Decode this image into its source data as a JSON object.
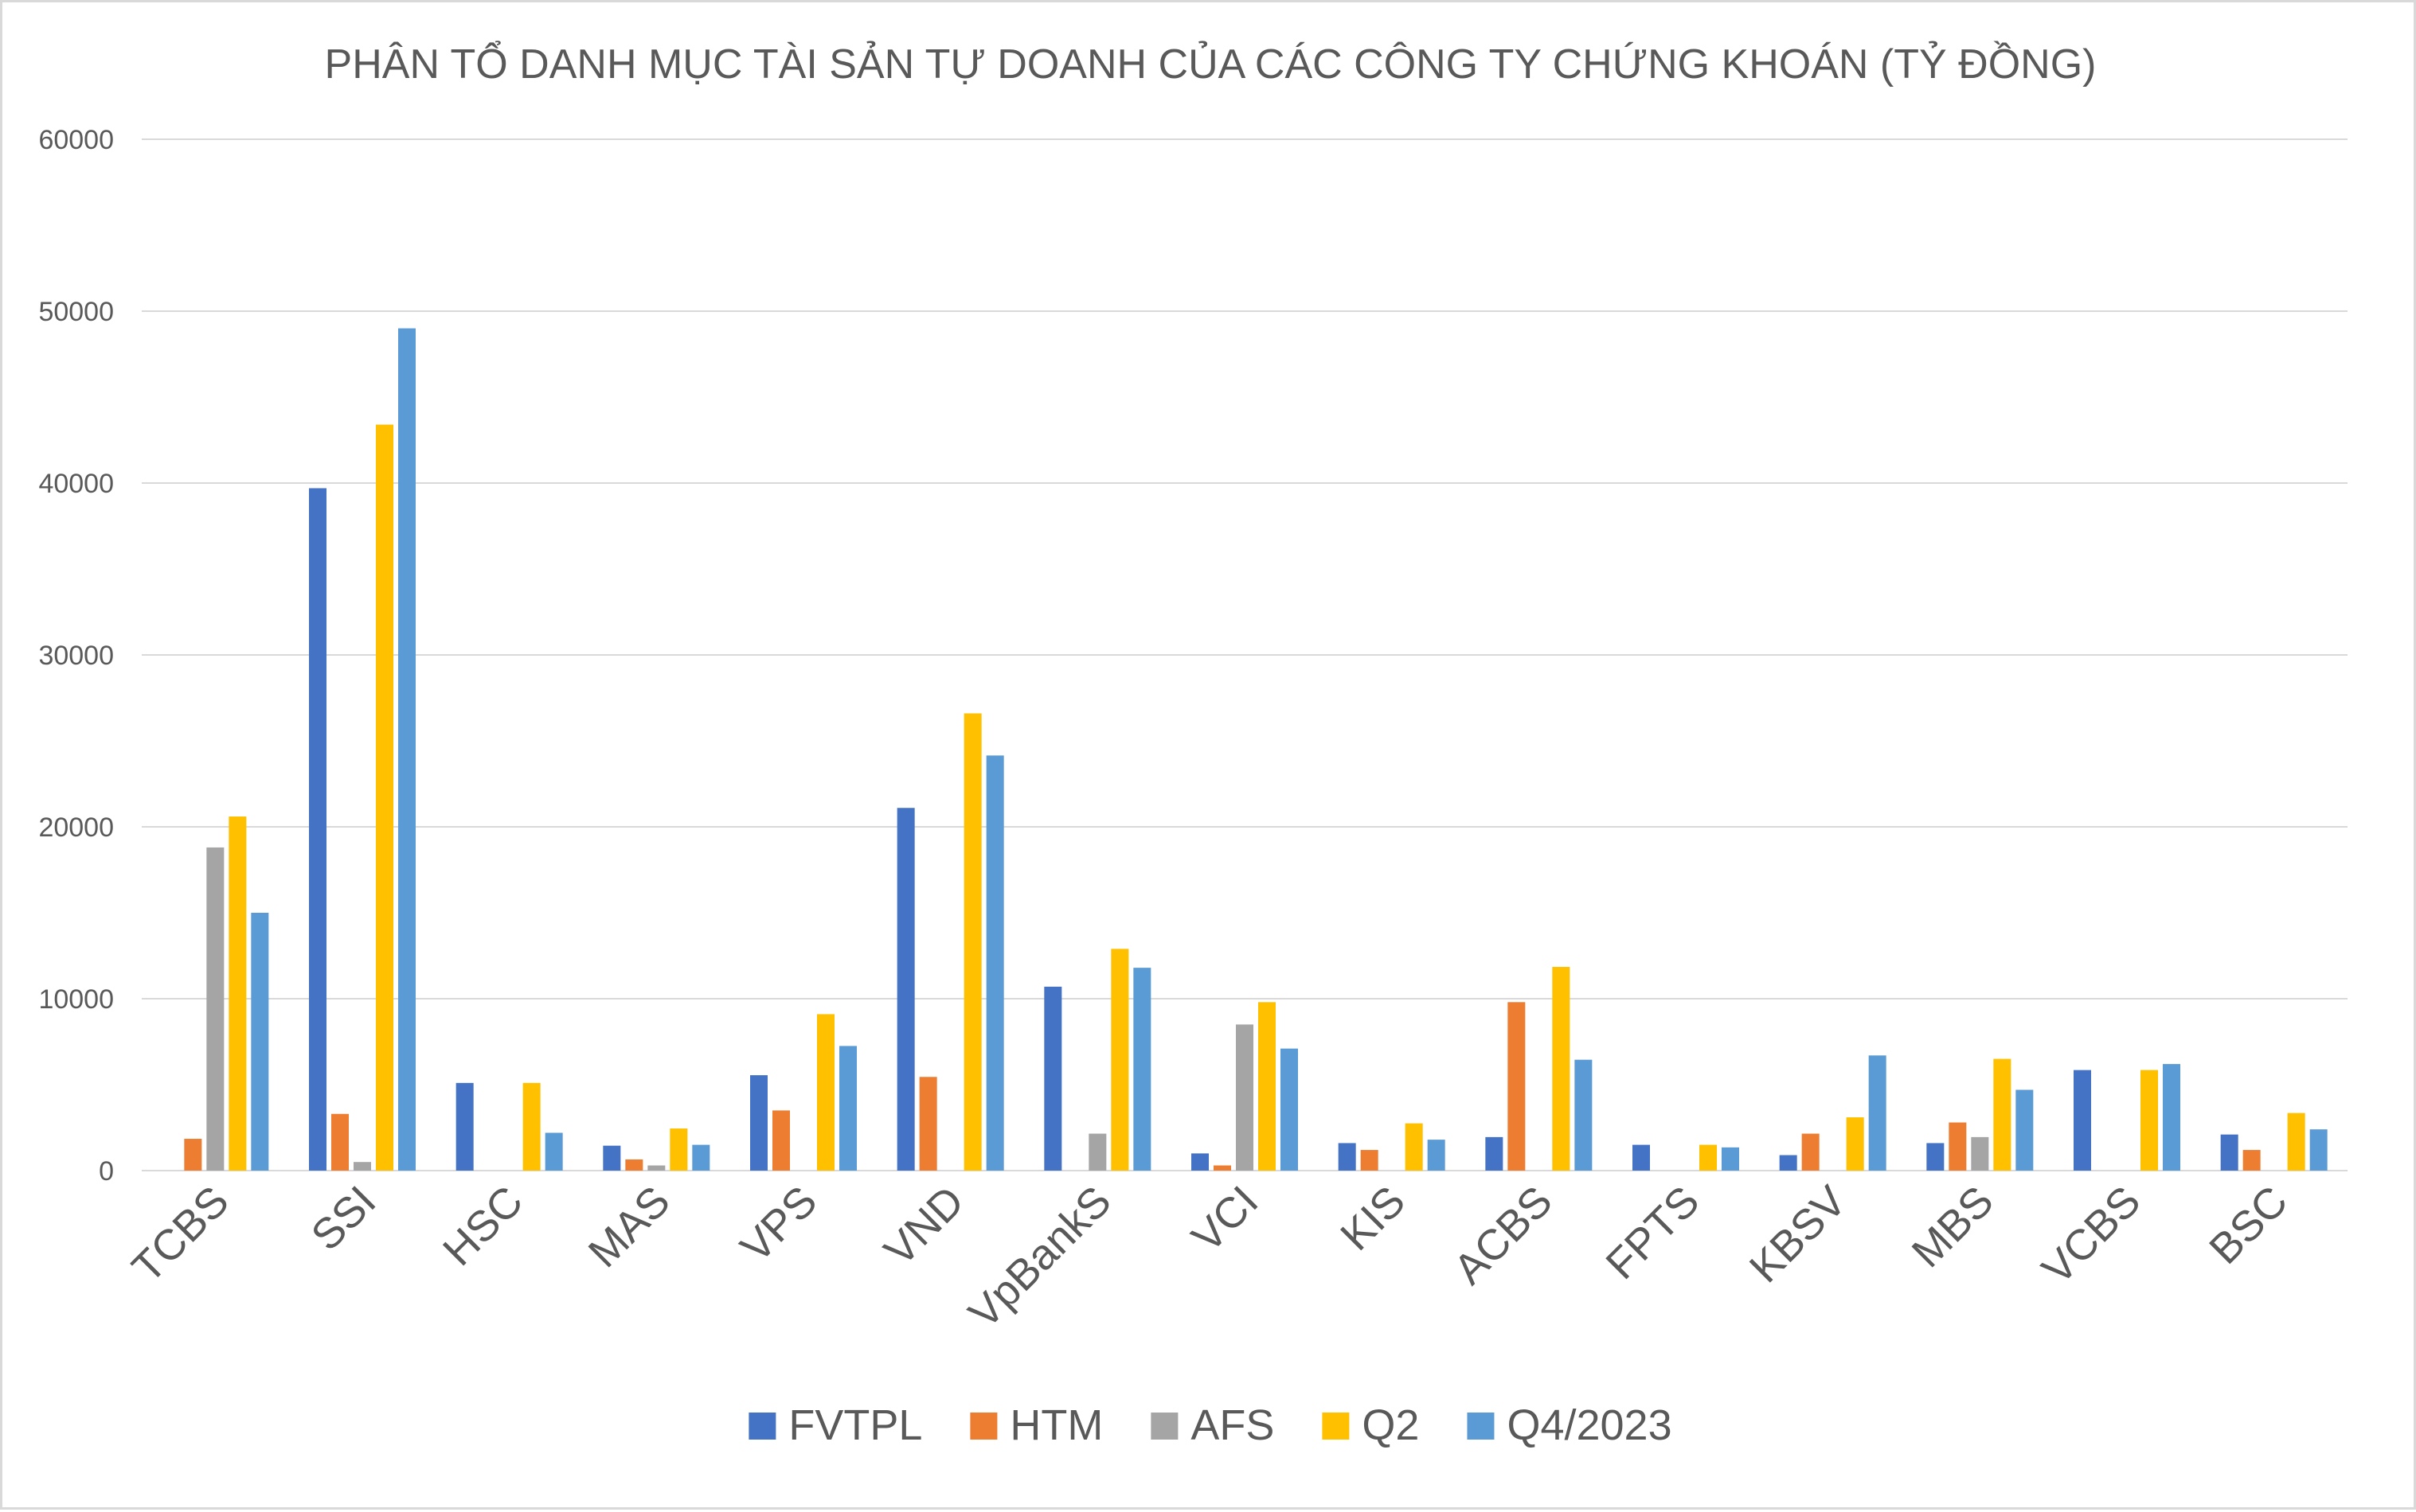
{
  "chart_data": {
    "type": "bar",
    "title": "PHÂN TỔ DANH MỤC TÀI SẢN TỰ DOANH CỦA CÁC CÔNG TY CHỨNG KHOÁN (TỶ ĐỒNG)",
    "xlabel": "",
    "ylabel": "",
    "ylim": [
      0,
      60000
    ],
    "yticks": [
      0,
      10000,
      20000,
      30000,
      40000,
      50000,
      60000
    ],
    "grid": true,
    "legend_position": "bottom",
    "categories": [
      "TCBS",
      "SSI",
      "HSC",
      "MAS",
      "VPS",
      "VND",
      "VpBankS",
      "VCI",
      "KIS",
      "ACBS",
      "FPTS",
      "KBSV",
      "MBS",
      "VCBS",
      "BSC"
    ],
    "series": [
      {
        "name": "FVTPL",
        "color": "#4472C4",
        "values": [
          0,
          39700,
          5100,
          1450,
          5550,
          21100,
          10700,
          1000,
          1600,
          1950,
          1500,
          900,
          1600,
          5850,
          2100
        ]
      },
      {
        "name": "HTM",
        "color": "#ED7D31",
        "values": [
          1850,
          3300,
          0,
          650,
          3500,
          5450,
          0,
          300,
          1200,
          9800,
          0,
          2150,
          2800,
          0,
          1200
        ]
      },
      {
        "name": "AFS",
        "color": "#A5A5A5",
        "values": [
          18800,
          500,
          0,
          300,
          0,
          0,
          2150,
          8500,
          0,
          0,
          0,
          0,
          1950,
          0,
          0
        ]
      },
      {
        "name": "Q2",
        "color": "#FFC000",
        "values": [
          20600,
          43400,
          5100,
          2450,
          9100,
          26600,
          12900,
          9800,
          2750,
          11850,
          1500,
          3100,
          6500,
          5850,
          3350
        ]
      },
      {
        "name": "Q4/2023",
        "color": "#5B9BD5",
        "values": [
          15000,
          49000,
          2200,
          1500,
          7250,
          24150,
          11800,
          7100,
          1800,
          6450,
          1350,
          6700,
          4700,
          6200,
          2400
        ]
      }
    ]
  }
}
